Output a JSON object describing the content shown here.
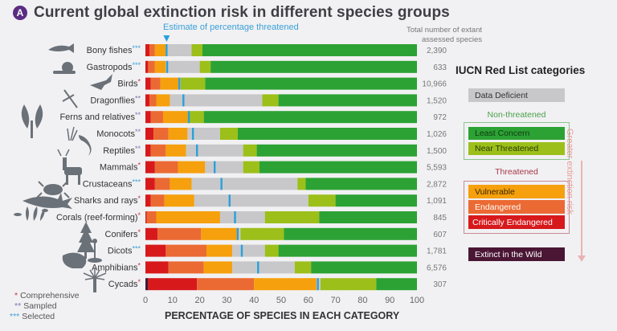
{
  "header": {
    "badge": "A",
    "title": "Current global extinction risk in different species groups",
    "estimate_label": "Estimate of percentage threatened",
    "total_label_line1": "Total number of extant",
    "total_label_line2": "assessed species"
  },
  "legend": {
    "title": "IUCN Red List categories",
    "data_deficient": "Data Deficient",
    "non_threatened_title": "Non-threatened",
    "least_concern": "Least Concern",
    "near_threatened": "Near Threatened",
    "threatened_title": "Threatened",
    "vulnerable": "Vulnerable",
    "endangered": "Endangered",
    "critically_endangered": "Critically Endangered",
    "extinct_in_wild": "Extinct in the Wild",
    "risk_arrow_label": "Greater extinction risk"
  },
  "footnotes": [
    {
      "stars": "*",
      "label": "Comprehensive",
      "color": "#d0343c"
    },
    {
      "stars": "**",
      "label": "Sampled",
      "color": "#7a72b0"
    },
    {
      "stars": "***",
      "label": "Selected",
      "color": "#3aa0d8"
    }
  ],
  "colors": {
    "EW": "#4a1634",
    "CR": "#d7191c",
    "EN": "#eb6a33",
    "VU": "#f5a00c",
    "DD": "#c8c8ca",
    "NT": "#9cbf1a",
    "LC": "#2ca234",
    "estimate": "#2aa0dc"
  },
  "chart_data": {
    "type": "bar",
    "orientation": "horizontal-stacked",
    "title": "Current global extinction risk in different species groups",
    "xlabel": "PERCENTAGE  OF SPECIES IN EACH CATEGORY",
    "ylabel": "",
    "xlim": [
      0,
      100
    ],
    "xticks": [
      "0",
      "10",
      "20",
      "30",
      "40",
      "50",
      "60",
      "70",
      "80",
      "90",
      "100"
    ],
    "grid": false,
    "category_order": [
      "EW",
      "CR",
      "EN",
      "VU",
      "DD",
      "NT",
      "LC"
    ],
    "categories": [
      "Bony fishes",
      "Gastropods",
      "Birds",
      "Dragonflies",
      "Ferns and relatives",
      "Monocots",
      "Reptiles",
      "Mammals",
      "Crustaceans",
      "Sharks and rays",
      "Corals (reef-forming)",
      "Conifers",
      "Dicots",
      "Amphibians",
      "Cycads"
    ],
    "assessment_stars": [
      "***",
      "***",
      "*",
      "**",
      "**",
      "**",
      "**",
      "*",
      "***",
      "*",
      "*",
      "*",
      "***",
      "*",
      "*"
    ],
    "totals": [
      "2,390",
      "633",
      "10,966",
      "1,520",
      "972",
      "1,026",
      "1,500",
      "5,593",
      "2,872",
      "1,091",
      "845",
      "607",
      "1,781",
      "6,576",
      "307"
    ],
    "series": [
      {
        "name": "Extinct in the Wild",
        "key": "EW",
        "values": [
          0,
          0,
          0,
          0,
          0,
          0,
          0,
          0,
          0,
          0,
          0,
          0,
          0,
          0,
          1
        ]
      },
      {
        "name": "Critically Endangered",
        "key": "CR",
        "values": [
          1.5,
          1,
          2,
          1.5,
          2,
          3,
          2,
          3.5,
          3.5,
          2,
          0.5,
          4.5,
          7.5,
          8.5,
          18
        ]
      },
      {
        "name": "Endangered",
        "key": "EN",
        "values": [
          2,
          2.5,
          3.5,
          2.5,
          4.5,
          5.5,
          5.5,
          8.5,
          5.5,
          5,
          3.5,
          16,
          15,
          13,
          21
        ]
      },
      {
        "name": "Vulnerable",
        "key": "VU",
        "values": [
          4,
          4,
          7,
          5,
          9,
          7,
          7.5,
          10,
          8,
          11,
          23.5,
          13.5,
          9.5,
          10.5,
          23
        ]
      },
      {
        "name": "Data Deficient",
        "key": "DD",
        "values": [
          9.5,
          12.5,
          0.5,
          34,
          0,
          12,
          21,
          14,
          39,
          42,
          16.5,
          1,
          12,
          23,
          1.5
        ]
      },
      {
        "name": "Near Threatened",
        "key": "NT",
        "values": [
          4,
          4,
          9,
          6,
          6,
          6.5,
          5,
          6,
          3,
          10,
          20,
          16,
          5,
          6,
          20.5
        ]
      },
      {
        "name": "Least Concern",
        "key": "LC",
        "values": [
          79,
          76,
          78,
          51,
          78.5,
          66,
          59,
          58,
          41,
          30,
          36,
          49,
          51,
          39,
          15
        ]
      }
    ],
    "estimate_threatened": [
      7.8,
      8,
      12.5,
      14,
      16,
      17.5,
      19,
      25.5,
      28,
      31,
      33,
      34,
      35.5,
      41.5,
      63.5
    ]
  }
}
